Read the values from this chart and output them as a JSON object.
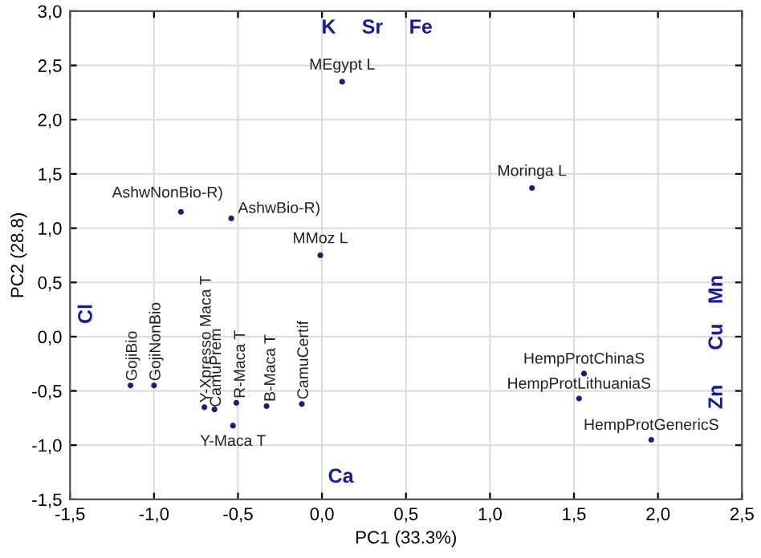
{
  "chart_data": {
    "type": "scatter",
    "xlabel": "PC1 (33.3%)",
    "ylabel": "PC2 (28.8)",
    "series": [
      {
        "color": "#1c1c80",
        "x": [
          0.12,
          1.25,
          -0.84,
          -0.54,
          -0.01,
          -1.14,
          -1.0,
          -0.7,
          -0.64,
          -0.51,
          -0.53,
          -0.33,
          -0.12,
          1.56,
          1.53,
          1.96
        ],
        "values": [
          2.35,
          1.37,
          1.15,
          1.09,
          0.75,
          -0.45,
          -0.45,
          -0.65,
          -0.67,
          -0.61,
          -0.82,
          -0.64,
          -0.62,
          -0.34,
          -0.57,
          -0.95
        ],
        "value_labels": [
          "MEgypt L",
          "Moringa L",
          "AshwNonBio-R)",
          "AshwBio-R)",
          "MMoz L",
          "GojiBio",
          "GojiNonBio",
          "Y-Xpresso Maca T",
          "CamuPrem",
          "R-Maca T",
          "Y-Maca T",
          "B-Maca T",
          "CamuCertif",
          "HempProtChinaS",
          "HempProtLithuaniaS",
          "HempProtGenericS"
        ]
      }
    ],
    "annotations": [
      "K",
      "Sr",
      "Fe",
      "Cl",
      "Mn",
      "Cu",
      "Zn",
      "Ca"
    ],
    "xlim": [
      -1.5,
      2.5
    ],
    "ylim": [
      -1.5,
      3.0
    ],
    "xticks": [
      {
        "value": -1.5,
        "label": "-1,5"
      },
      {
        "value": -1.0,
        "label": "-1,0"
      },
      {
        "value": -0.5,
        "label": "-0,5"
      },
      {
        "value": 0.0,
        "label": "0,0"
      },
      {
        "value": 0.5,
        "label": "0,5"
      },
      {
        "value": 1.0,
        "label": "1,0"
      },
      {
        "value": 1.5,
        "label": "1,5"
      },
      {
        "value": 2.0,
        "label": "2,0"
      },
      {
        "value": 2.5,
        "label": "2,5"
      }
    ],
    "yticks": [
      {
        "value": -1.5,
        "label": "-1,5"
      },
      {
        "value": -1.0,
        "label": "-1,0"
      },
      {
        "value": -0.5,
        "label": "-0,5"
      },
      {
        "value": 0.0,
        "label": "0,0"
      },
      {
        "value": 0.5,
        "label": "0,5"
      },
      {
        "value": 1.0,
        "label": "1,0"
      },
      {
        "value": 1.5,
        "label": "1,5"
      },
      {
        "value": 2.0,
        "label": "2,0"
      },
      {
        "value": 2.5,
        "label": "2,5"
      },
      {
        "value": 3.0,
        "label": "3,0"
      }
    ],
    "grid": true,
    "marker": "circle"
  }
}
